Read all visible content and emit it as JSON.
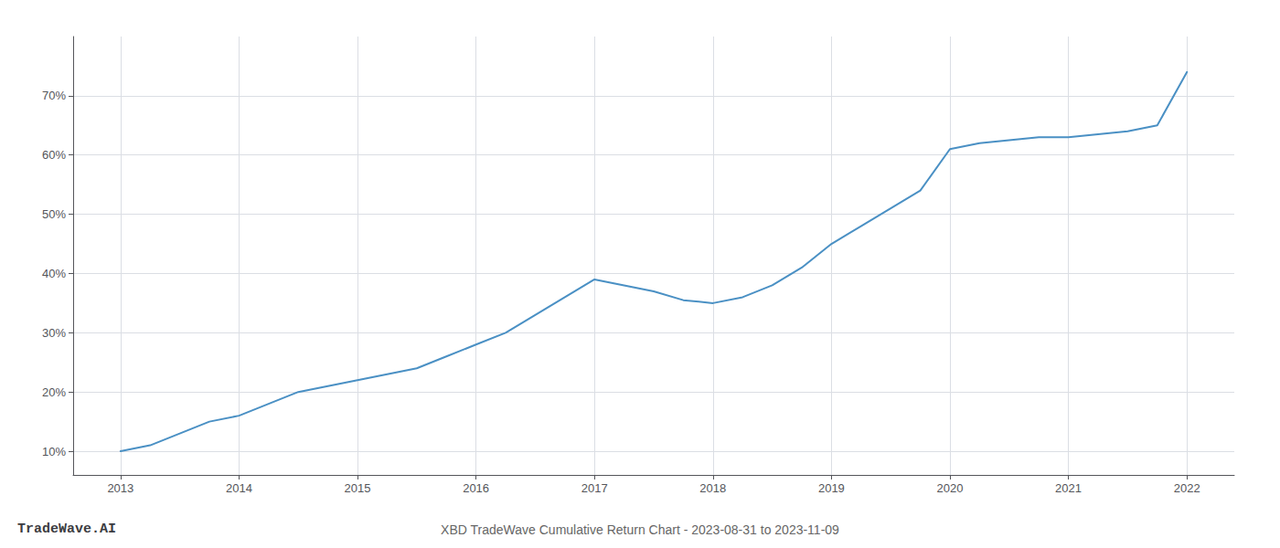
{
  "chart_data": {
    "type": "line",
    "title": "XBD TradeWave Cumulative Return Chart - 2023-08-31 to 2023-11-09",
    "annotations": [
      "TradeWave.AI"
    ],
    "color": "#4a90c4",
    "x": [
      2013.0,
      2013.25,
      2013.5,
      2013.75,
      2014.0,
      2014.25,
      2014.5,
      2014.75,
      2015.0,
      2015.25,
      2015.5,
      2015.75,
      2016.0,
      2016.25,
      2016.5,
      2016.75,
      2017.0,
      2017.25,
      2017.5,
      2017.75,
      2018.0,
      2018.25,
      2018.5,
      2018.75,
      2019.0,
      2019.25,
      2019.5,
      2019.75,
      2020.0,
      2020.25,
      2020.5,
      2020.75,
      2021.0,
      2021.25,
      2021.5,
      2021.75,
      2022.0
    ],
    "values": [
      10,
      11,
      13,
      15,
      16,
      18,
      20,
      21,
      22,
      23,
      24,
      26,
      28,
      30,
      33,
      36,
      39,
      38,
      37,
      35.5,
      35,
      36,
      38,
      41,
      45,
      48,
      51,
      54,
      61,
      62,
      62.5,
      63,
      63,
      63.5,
      64,
      65,
      74
    ],
    "xlim": [
      2012.6,
      2022.4
    ],
    "ylim": [
      6,
      80
    ],
    "xticks": [
      2013,
      2014,
      2015,
      2016,
      2017,
      2018,
      2019,
      2020,
      2021,
      2022
    ],
    "yticks": [
      {
        "value": 10,
        "label": "10%"
      },
      {
        "value": 20,
        "label": "20%"
      },
      {
        "value": 30,
        "label": "30%"
      },
      {
        "value": 40,
        "label": "40%"
      },
      {
        "value": 50,
        "label": "50%"
      },
      {
        "value": 60,
        "label": "60%"
      },
      {
        "value": 70,
        "label": "70%"
      }
    ],
    "grid": true
  }
}
